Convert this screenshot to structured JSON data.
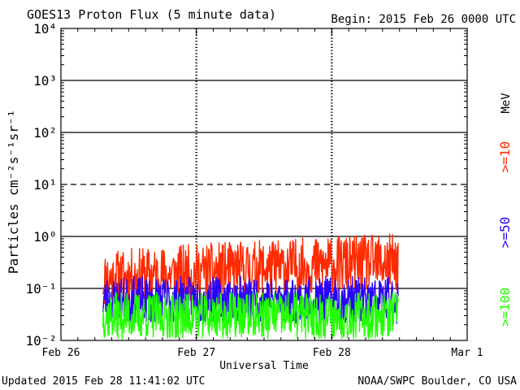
{
  "chart_data": {
    "type": "line",
    "title": "GOES13 Proton Flux (5 minute data)",
    "begin_label": "Begin: 2015 Feb 26 0000 UTC",
    "xlabel": "Universal Time",
    "ylabel": "Particles cm⁻²s⁻¹sr⁻¹",
    "yscale": "log",
    "ylim": [
      0.01,
      10000
    ],
    "y_ticks": [
      {
        "value": 0.01,
        "label": "10⁻²"
      },
      {
        "value": 0.1,
        "label": "10⁻¹"
      },
      {
        "value": 1,
        "label": "10⁰"
      },
      {
        "value": 10,
        "label": "10¹"
      },
      {
        "value": 100,
        "label": "10²"
      },
      {
        "value": 1000,
        "label": "10³"
      },
      {
        "value": 10000,
        "label": "10⁴"
      }
    ],
    "thresholds": [
      {
        "value": 10,
        "style": "dashed"
      },
      {
        "value": 0.1,
        "style": "solid"
      },
      {
        "value": 1,
        "style": "solid"
      },
      {
        "value": 100,
        "style": "solid"
      },
      {
        "value": 1000,
        "style": "solid"
      }
    ],
    "xlim_days": [
      0,
      3
    ],
    "x_ticks": [
      {
        "day": 0,
        "label": "Feb 26"
      },
      {
        "day": 1,
        "label": "Feb 27"
      },
      {
        "day": 2,
        "label": "Feb 28"
      },
      {
        "day": 3,
        "label": "Mar 1"
      }
    ],
    "day_markers_days": [
      1,
      2
    ],
    "legend_position": "right",
    "unit_label": "MeV",
    "series": [
      {
        "name": ">=10",
        "color": "#ff2a00",
        "start_day": 0.31,
        "end_day": 2.49,
        "baseline": [
          0.15,
          0.32
        ],
        "amplitude": 0.55,
        "seed": 11
      },
      {
        "name": ">=50",
        "color": "#2a00ff",
        "start_day": 0.31,
        "end_day": 2.49,
        "baseline": [
          0.06,
          0.06
        ],
        "amplitude": 0.45,
        "seed": 23
      },
      {
        "name": ">=100",
        "color": "#22ff00",
        "start_day": 0.31,
        "end_day": 2.49,
        "baseline": [
          0.03,
          0.03
        ],
        "amplitude": 0.45,
        "seed": 37
      }
    ]
  },
  "footer": {
    "updated": "Updated 2015 Feb 28 11:41:02 UTC",
    "source": "NOAA/SWPC Boulder, CO USA"
  }
}
